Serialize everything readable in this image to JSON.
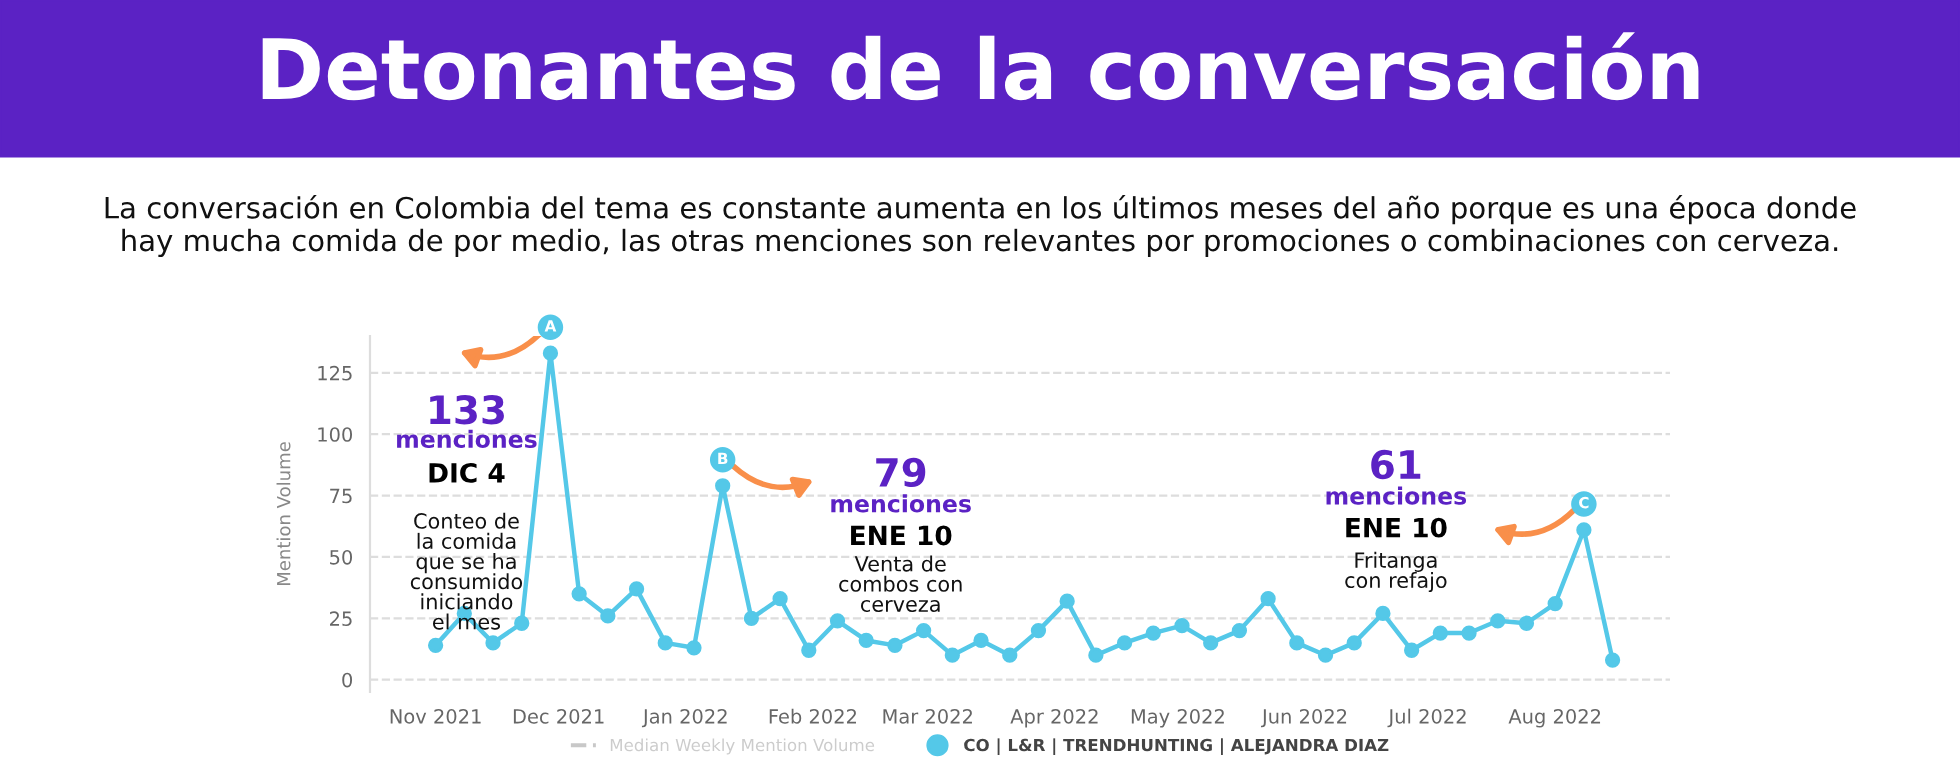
{
  "chart_data": {
    "type": "line",
    "title": "Detonantes de la conversación",
    "subtitle": "La conversación en Colombia del tema es constante aumenta en los últimos meses del año porque es una época donde\nhay mucha comida de por medio, las otras menciones son relevantes por promociones o combinaciones con cerveza.",
    "ylabel": "Mention Volume",
    "x": [
      "2021-11-01",
      "2021-11-08",
      "2021-11-15",
      "2021-11-22",
      "2021-11-29",
      "2021-12-06",
      "2021-12-13",
      "2021-12-20",
      "2021-12-27",
      "2022-01-03",
      "2022-01-10",
      "2022-01-17",
      "2022-01-24",
      "2022-01-31",
      "2022-02-07",
      "2022-02-14",
      "2022-02-21",
      "2022-02-28",
      "2022-03-07",
      "2022-03-14",
      "2022-03-21",
      "2022-03-28",
      "2022-04-04",
      "2022-04-11",
      "2022-04-18",
      "2022-04-25",
      "2022-05-02",
      "2022-05-09",
      "2022-05-16",
      "2022-05-23",
      "2022-05-30",
      "2022-06-06",
      "2022-06-13",
      "2022-06-20",
      "2022-06-27",
      "2022-07-04",
      "2022-07-11",
      "2022-07-18",
      "2022-07-25",
      "2022-08-01",
      "2022-08-08",
      "2022-08-15"
    ],
    "series": [
      {
        "name": "Median Weekly Mention Volume",
        "color": "#c8c8c8",
        "line_style": "dashed",
        "marker": "none",
        "values": [
          null,
          null,
          null,
          null,
          null,
          null,
          null,
          null,
          null,
          null,
          null,
          null,
          null,
          null,
          null,
          null,
          null,
          null,
          null,
          null,
          null,
          null,
          null,
          null,
          null,
          null,
          null,
          null,
          null,
          null,
          null,
          null,
          null,
          null,
          null,
          null,
          null,
          null,
          null,
          null,
          null,
          null
        ]
      },
      {
        "name": "CO | L&R | TRENDHUNTING | ALEJANDRA DIAZ",
        "color": "#54c8e8",
        "line_style": "solid",
        "marker": "circle",
        "values": [
          14,
          27,
          15,
          23,
          133,
          35,
          26,
          37,
          15,
          13,
          79,
          25,
          33,
          12,
          24,
          16,
          14,
          20,
          10,
          16,
          10,
          20,
          32,
          10,
          15,
          19,
          22,
          15,
          20,
          33,
          15,
          10,
          15,
          27,
          12,
          19,
          19,
          24,
          23,
          31,
          61,
          8
        ]
      }
    ],
    "xlim": [
      "2021-10-16",
      "2022-08-29"
    ],
    "xticks": [
      {
        "value": "2021-11-01",
        "label": "Nov 2021"
      },
      {
        "value": "2021-12-01",
        "label": "Dec 2021"
      },
      {
        "value": "2022-01-01",
        "label": "Jan 2022"
      },
      {
        "value": "2022-02-01",
        "label": "Feb 2022"
      },
      {
        "value": "2022-03-01",
        "label": "Mar 2022"
      },
      {
        "value": "2022-04-01",
        "label": "Apr 2022"
      },
      {
        "value": "2022-05-01",
        "label": "May 2022"
      },
      {
        "value": "2022-06-01",
        "label": "Jun 2022"
      },
      {
        "value": "2022-07-01",
        "label": "Jul 2022"
      },
      {
        "value": "2022-08-01",
        "label": "Aug 2022"
      }
    ],
    "ylim": [
      -5,
      140
    ],
    "yticks": [
      0,
      25,
      50,
      75,
      100,
      125
    ],
    "grid": "y",
    "legend": "bottom",
    "annotations": [
      {
        "text": "A",
        "x": "2021-11-29",
        "y": 133
      },
      "133",
      "menciones",
      "DIC 4",
      "Conteo de\nla comida\nque se ha\nconsumido\niniciando\nel mes",
      {
        "text": "B",
        "x": "2022-01-10",
        "y": 79
      },
      "79",
      "menciones",
      "ENE 10",
      "Venta de\ncombos con\ncerveza",
      {
        "text": "C",
        "x": "2022-08-08",
        "y": 61
      },
      "61",
      "menciones",
      "ENE 10",
      "Fritanga\ncon refajo"
    ]
  }
}
